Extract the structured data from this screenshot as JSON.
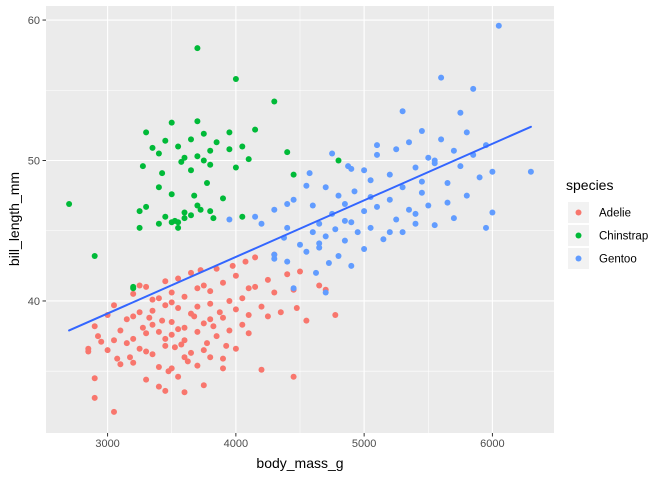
{
  "chart_data": {
    "type": "scatter",
    "title": "",
    "xlabel": "body_mass_g",
    "ylabel": "bill_length_mm",
    "xlim": [
      2520,
      6480
    ],
    "ylim": [
      30.6,
      61.0
    ],
    "xticks": [
      3000,
      4000,
      5000,
      6000
    ],
    "yticks": [
      40,
      50,
      60
    ],
    "grid": true,
    "legend": {
      "title": "species",
      "position": "right"
    },
    "colors": {
      "Adelie": "#F8766D",
      "Chinstrap": "#00BA38",
      "Gentoo": "#619CFF",
      "trend": "#3366FF",
      "panel": "#EBEBEB"
    },
    "trend_line": {
      "x": [
        2700,
        6300
      ],
      "y": [
        37.9,
        52.4
      ]
    },
    "series": [
      {
        "name": "Adelie",
        "points": [
          [
            2850,
            36.6
          ],
          [
            2850,
            36.4
          ],
          [
            2900,
            34.5
          ],
          [
            2900,
            33.1
          ],
          [
            2900,
            38.2
          ],
          [
            2925,
            37.5
          ],
          [
            2950,
            37.1
          ],
          [
            3000,
            36.5
          ],
          [
            3000,
            39.0
          ],
          [
            3050,
            32.1
          ],
          [
            3050,
            37.2
          ],
          [
            3075,
            35.9
          ],
          [
            3100,
            37.9
          ],
          [
            3100,
            35.5
          ],
          [
            3150,
            37.0
          ],
          [
            3150,
            38.7
          ],
          [
            3175,
            36.0
          ],
          [
            3200,
            38.9
          ],
          [
            3200,
            35.6
          ],
          [
            3200,
            40.5
          ],
          [
            3250,
            39.2
          ],
          [
            3250,
            41.1
          ],
          [
            3250,
            36.6
          ],
          [
            3275,
            38.1
          ],
          [
            3300,
            36.4
          ],
          [
            3300,
            37.7
          ],
          [
            3300,
            41.0
          ],
          [
            3325,
            38.8
          ],
          [
            3350,
            40.1
          ],
          [
            3350,
            36.2
          ],
          [
            3350,
            39.3
          ],
          [
            3400,
            35.3
          ],
          [
            3400,
            37.8
          ],
          [
            3400,
            40.2
          ],
          [
            3400,
            33.9
          ],
          [
            3425,
            38.6
          ],
          [
            3450,
            37.3
          ],
          [
            3450,
            36.8
          ],
          [
            3450,
            39.7
          ],
          [
            3450,
            41.4
          ],
          [
            3475,
            35.0
          ],
          [
            3500,
            35.2
          ],
          [
            3500,
            37.6
          ],
          [
            3500,
            38.5
          ],
          [
            3500,
            40.6
          ],
          [
            3525,
            36.7
          ],
          [
            3550,
            39.5
          ],
          [
            3550,
            38.0
          ],
          [
            3550,
            41.6
          ],
          [
            3550,
            34.6
          ],
          [
            3575,
            36.9
          ],
          [
            3600,
            38.1
          ],
          [
            3600,
            33.5
          ],
          [
            3600,
            40.3
          ],
          [
            3600,
            37.2
          ],
          [
            3625,
            35.7
          ],
          [
            3650,
            39.1
          ],
          [
            3650,
            42.0
          ],
          [
            3650,
            36.3
          ],
          [
            3675,
            38.9
          ],
          [
            3700,
            37.8
          ],
          [
            3700,
            40.9
          ],
          [
            3700,
            35.4
          ],
          [
            3700,
            39.6
          ],
          [
            3725,
            42.2
          ],
          [
            3750,
            36.5
          ],
          [
            3750,
            38.4
          ],
          [
            3750,
            41.1
          ],
          [
            3775,
            37.0
          ],
          [
            3800,
            39.8
          ],
          [
            3800,
            36.0
          ],
          [
            3800,
            40.7
          ],
          [
            3825,
            38.2
          ],
          [
            3850,
            42.3
          ],
          [
            3850,
            37.5
          ],
          [
            3875,
            39.2
          ],
          [
            3900,
            35.9
          ],
          [
            3900,
            41.3
          ],
          [
            3900,
            38.8
          ],
          [
            3925,
            36.8
          ],
          [
            3950,
            40.0
          ],
          [
            3950,
            37.9
          ],
          [
            3975,
            42.5
          ],
          [
            4000,
            39.4
          ],
          [
            4000,
            41.8
          ],
          [
            4000,
            36.6
          ],
          [
            4050,
            40.2
          ],
          [
            4050,
            38.3
          ],
          [
            4075,
            42.8
          ],
          [
            4100,
            39.0
          ],
          [
            4100,
            37.7
          ],
          [
            4150,
            41.0
          ],
          [
            4150,
            43.1
          ],
          [
            4200,
            39.6
          ],
          [
            4200,
            35.1
          ],
          [
            4250,
            41.5
          ],
          [
            4250,
            38.9
          ],
          [
            4300,
            40.6
          ],
          [
            4300,
            43.3
          ],
          [
            4350,
            39.2
          ],
          [
            4400,
            41.9
          ],
          [
            4450,
            34.6
          ],
          [
            4450,
            40.8
          ],
          [
            4475,
            39.5
          ],
          [
            4500,
            42.1
          ],
          [
            4550,
            38.6
          ],
          [
            4650,
            41.1
          ],
          [
            4700,
            40.8
          ],
          [
            4775,
            39.0
          ],
          [
            3050,
            39.7
          ],
          [
            3300,
            34.4
          ],
          [
            3450,
            33.6
          ],
          [
            3600,
            36.0
          ],
          [
            3750,
            34.0
          ],
          [
            3900,
            35.2
          ],
          [
            3200,
            37.3
          ],
          [
            3350,
            38.3
          ],
          [
            3500,
            39.9
          ],
          [
            3800,
            38.7
          ],
          [
            4100,
            40.9
          ]
        ]
      },
      {
        "name": "Chinstrap",
        "points": [
          [
            2700,
            46.9
          ],
          [
            2900,
            43.2
          ],
          [
            3200,
            40.9
          ],
          [
            3250,
            45.2
          ],
          [
            3250,
            46.4
          ],
          [
            3275,
            49.6
          ],
          [
            3300,
            46.7
          ],
          [
            3300,
            52.0
          ],
          [
            3350,
            50.9
          ],
          [
            3400,
            45.5
          ],
          [
            3400,
            48.1
          ],
          [
            3400,
            50.5
          ],
          [
            3425,
            49.1
          ],
          [
            3450,
            46.0
          ],
          [
            3450,
            51.4
          ],
          [
            3500,
            45.6
          ],
          [
            3500,
            47.6
          ],
          [
            3500,
            52.7
          ],
          [
            3525,
            45.7
          ],
          [
            3550,
            45.2
          ],
          [
            3550,
            51.0
          ],
          [
            3575,
            49.9
          ],
          [
            3600,
            45.9
          ],
          [
            3600,
            46.3
          ],
          [
            3600,
            50.2
          ],
          [
            3650,
            46.1
          ],
          [
            3650,
            51.5
          ],
          [
            3675,
            47.5
          ],
          [
            3700,
            46.8
          ],
          [
            3700,
            50.3
          ],
          [
            3700,
            52.8
          ],
          [
            3700,
            58.0
          ],
          [
            3725,
            46.5
          ],
          [
            3750,
            50.0
          ],
          [
            3750,
            51.9
          ],
          [
            3775,
            48.4
          ],
          [
            3800,
            50.7
          ],
          [
            3800,
            46.4
          ],
          [
            3800,
            49.7
          ],
          [
            3825,
            45.9
          ],
          [
            3850,
            51.3
          ],
          [
            3900,
            47.3
          ],
          [
            3950,
            50.8
          ],
          [
            3950,
            52.0
          ],
          [
            4000,
            55.8
          ],
          [
            4050,
            51.0
          ],
          [
            4050,
            46.0
          ],
          [
            4100,
            50.1
          ],
          [
            4150,
            52.2
          ],
          [
            4300,
            54.2
          ],
          [
            4400,
            50.6
          ],
          [
            4450,
            49.0
          ],
          [
            4800,
            50.0
          ],
          [
            3550,
            45.6
          ],
          [
            3650,
            49.3
          ],
          [
            3200,
            41.0
          ],
          [
            4000,
            49.5
          ]
        ]
      },
      {
        "name": "Gentoo",
        "points": [
          [
            3950,
            45.8
          ],
          [
            4150,
            46.0
          ],
          [
            4200,
            45.5
          ],
          [
            4300,
            46.5
          ],
          [
            4300,
            43.3
          ],
          [
            4375,
            44.5
          ],
          [
            4400,
            45.2
          ],
          [
            4400,
            42.8
          ],
          [
            4450,
            47.2
          ],
          [
            4450,
            40.9
          ],
          [
            4500,
            44.0
          ],
          [
            4550,
            43.5
          ],
          [
            4575,
            49.1
          ],
          [
            4600,
            46.8
          ],
          [
            4600,
            44.9
          ],
          [
            4625,
            42.0
          ],
          [
            4650,
            45.5
          ],
          [
            4650,
            43.8
          ],
          [
            4700,
            48.1
          ],
          [
            4700,
            44.6
          ],
          [
            4725,
            42.7
          ],
          [
            4750,
            46.2
          ],
          [
            4750,
            50.5
          ],
          [
            4775,
            45.1
          ],
          [
            4800,
            43.2
          ],
          [
            4800,
            47.5
          ],
          [
            4850,
            46.9
          ],
          [
            4850,
            44.3
          ],
          [
            4875,
            49.6
          ],
          [
            4900,
            45.6
          ],
          [
            4900,
            42.5
          ],
          [
            4925,
            47.8
          ],
          [
            4950,
            44.9
          ],
          [
            5000,
            46.4
          ],
          [
            5000,
            49.3
          ],
          [
            5000,
            43.7
          ],
          [
            5050,
            48.6
          ],
          [
            5050,
            45.2
          ],
          [
            5100,
            50.4
          ],
          [
            5100,
            46.7
          ],
          [
            5150,
            44.4
          ],
          [
            5200,
            49.0
          ],
          [
            5200,
            47.2
          ],
          [
            5250,
            45.8
          ],
          [
            5250,
            50.8
          ],
          [
            5300,
            48.1
          ],
          [
            5300,
            44.9
          ],
          [
            5350,
            46.5
          ],
          [
            5350,
            51.3
          ],
          [
            5400,
            49.5
          ],
          [
            5400,
            45.5
          ],
          [
            5450,
            47.7
          ],
          [
            5450,
            52.1
          ],
          [
            5500,
            50.2
          ],
          [
            5500,
            46.8
          ],
          [
            5550,
            49.8
          ],
          [
            5550,
            45.4
          ],
          [
            5600,
            55.9
          ],
          [
            5600,
            51.5
          ],
          [
            5650,
            48.4
          ],
          [
            5650,
            47.0
          ],
          [
            5700,
            50.7
          ],
          [
            5700,
            45.9
          ],
          [
            5750,
            49.6
          ],
          [
            5800,
            52.0
          ],
          [
            5800,
            47.5
          ],
          [
            5850,
            55.1
          ],
          [
            5850,
            50.4
          ],
          [
            5900,
            48.8
          ],
          [
            5950,
            45.2
          ],
          [
            5950,
            51.1
          ],
          [
            6000,
            49.2
          ],
          [
            6000,
            46.3
          ],
          [
            6050,
            59.6
          ],
          [
            6300,
            49.2
          ],
          [
            4300,
            43.0
          ],
          [
            4550,
            48.2
          ],
          [
            4700,
            40.6
          ],
          [
            4850,
            45.7
          ],
          [
            5100,
            51.1
          ],
          [
            5300,
            53.5
          ],
          [
            5400,
            46.2
          ],
          [
            5550,
            50.0
          ],
          [
            5750,
            53.4
          ],
          [
            4900,
            49.4
          ],
          [
            4650,
            44.1
          ],
          [
            5200,
            44.9
          ],
          [
            5450,
            48.5
          ],
          [
            5050,
            47.4
          ],
          [
            4400,
            46.9
          ]
        ]
      }
    ]
  }
}
